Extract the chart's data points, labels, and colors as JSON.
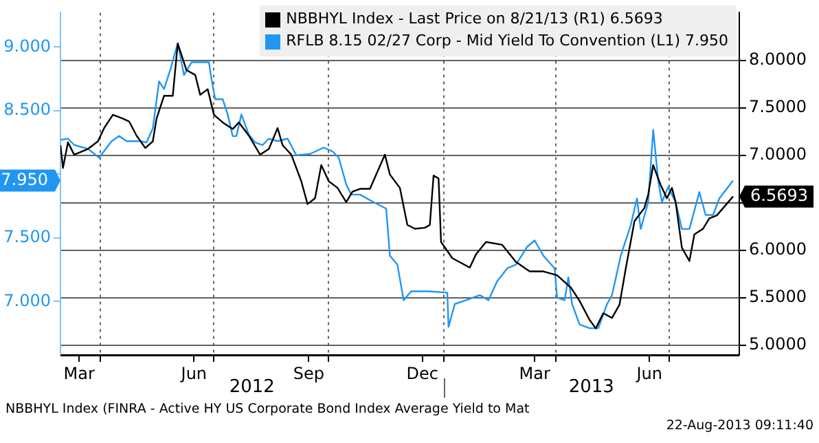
{
  "chart_data": {
    "type": "line",
    "series": [
      {
        "name": "NBBHYL Index - Last Price on 8/21/13 (R1) 6.5693",
        "color": "#000000",
        "axis": "y2",
        "x": [
          "2012-02-29",
          "2012-03-02",
          "2012-03-06",
          "2012-03-11",
          "2012-03-22",
          "2012-03-30",
          "2012-04-04",
          "2012-04-11",
          "2012-04-19",
          "2012-04-24",
          "2012-04-30",
          "2012-05-07",
          "2012-05-13",
          "2012-05-16",
          "2012-05-22",
          "2012-05-29",
          "2012-06-02",
          "2012-06-05",
          "2012-06-09",
          "2012-06-16",
          "2012-06-20",
          "2012-06-26",
          "2012-07-01",
          "2012-07-08",
          "2012-07-16",
          "2012-07-21",
          "2012-07-29",
          "2012-08-07",
          "2012-08-14",
          "2012-08-21",
          "2012-08-25",
          "2012-09-01",
          "2012-09-09",
          "2012-09-14",
          "2012-09-20",
          "2012-09-25",
          "2012-10-01",
          "2012-10-08",
          "2012-10-15",
          "2012-10-20",
          "2012-10-26",
          "2012-11-03",
          "2012-11-10",
          "2012-11-15",
          "2012-11-19",
          "2012-11-27",
          "2012-12-03",
          "2012-12-09",
          "2012-12-17",
          "2012-12-21",
          "2012-12-24",
          "2012-12-28",
          "2012-12-30",
          "2013-01-08",
          "2013-01-22",
          "2013-01-27",
          "2013-02-04",
          "2013-02-17",
          "2013-02-28",
          "2013-03-11",
          "2013-03-22",
          "2013-04-02",
          "2013-04-13",
          "2013-04-20",
          "2013-04-28",
          "2013-05-03",
          "2013-05-09",
          "2013-05-16",
          "2013-05-22",
          "2013-05-27",
          "2013-06-03",
          "2013-06-11",
          "2013-06-14",
          "2013-06-18",
          "2013-06-24",
          "2013-06-29",
          "2013-07-03",
          "2013-07-06",
          "2013-07-11",
          "2013-07-17",
          "2013-07-21",
          "2013-07-28",
          "2013-08-02",
          "2013-08-08",
          "2013-08-21"
        ],
        "values": [
          7.11,
          6.87,
          7.14,
          7.01,
          7.07,
          7.15,
          7.29,
          7.43,
          7.39,
          7.36,
          7.21,
          7.08,
          7.15,
          7.39,
          7.63,
          7.63,
          8.18,
          8.06,
          7.9,
          7.85,
          7.64,
          7.7,
          7.43,
          7.35,
          7.28,
          7.35,
          7.21,
          7.01,
          7.07,
          7.29,
          7.11,
          7.01,
          6.73,
          6.49,
          6.55,
          6.9,
          6.73,
          6.66,
          6.51,
          6.62,
          6.65,
          6.65,
          6.86,
          7.01,
          6.8,
          6.66,
          6.27,
          6.23,
          6.24,
          6.27,
          6.79,
          6.76,
          6.09,
          5.92,
          5.82,
          5.96,
          6.09,
          6.06,
          5.88,
          5.78,
          5.78,
          5.74,
          5.61,
          5.47,
          5.27,
          5.18,
          5.34,
          5.29,
          5.43,
          5.81,
          6.31,
          6.45,
          6.59,
          6.9,
          6.69,
          6.55,
          6.66,
          6.51,
          6.03,
          5.89,
          6.17,
          6.23,
          6.34,
          6.37,
          6.5693
        ],
        "value_labels": [
          null,
          null,
          null,
          null,
          null,
          null,
          null,
          null,
          null,
          null,
          null,
          null,
          null,
          null,
          null,
          null,
          null,
          null,
          null,
          null,
          null,
          null,
          null,
          null,
          null,
          null,
          null,
          null,
          null,
          null,
          null,
          null,
          null,
          null,
          null,
          null,
          null,
          null,
          null,
          null,
          null,
          null,
          null,
          null,
          null,
          null,
          null,
          null,
          null,
          null,
          null,
          null,
          null,
          null,
          null,
          null,
          null,
          null,
          null,
          null,
          null,
          null,
          null,
          null,
          null,
          null,
          null,
          null,
          null,
          null,
          null,
          null,
          null,
          null,
          null,
          null,
          null,
          null,
          null,
          null,
          null,
          null,
          null,
          null,
          "6.5693"
        ]
      },
      {
        "name": "RFLB 8.15 02/27 Corp - Mid Yield To Convention (L1) 7.950",
        "color": "#2196f3",
        "axis": "y",
        "x": [
          "2012-02-29",
          "2012-03-06",
          "2012-03-11",
          "2012-03-22",
          "2012-03-31",
          "2012-04-10",
          "2012-04-16",
          "2012-04-22",
          "2012-05-03",
          "2012-05-08",
          "2012-05-13",
          "2012-05-18",
          "2012-05-22",
          "2012-05-27",
          "2012-06-02",
          "2012-06-07",
          "2012-06-13",
          "2012-06-20",
          "2012-06-27",
          "2012-06-29",
          "2012-07-02",
          "2012-07-08",
          "2012-07-12",
          "2012-07-16",
          "2012-07-19",
          "2012-07-23",
          "2012-07-29",
          "2012-08-03",
          "2012-08-09",
          "2012-08-14",
          "2012-08-21",
          "2012-08-29",
          "2012-09-05",
          "2012-09-16",
          "2012-09-27",
          "2012-10-04",
          "2012-10-09",
          "2012-10-15",
          "2012-10-19",
          "2012-10-26",
          "2012-11-06",
          "2012-11-16",
          "2012-11-19",
          "2012-11-25",
          "2012-11-30",
          "2012-12-06",
          "2012-12-09",
          "2012-12-20",
          "2013-01-04",
          "2013-01-05",
          "2013-01-10",
          "2013-01-19",
          "2013-01-30",
          "2013-02-06",
          "2013-02-13",
          "2013-02-21",
          "2013-02-28",
          "2013-03-09",
          "2013-03-15",
          "2013-03-22",
          "2013-03-31",
          "2013-04-02",
          "2013-04-08",
          "2013-04-11",
          "2013-04-14",
          "2013-04-20",
          "2013-04-28",
          "2013-05-05",
          "2013-05-12",
          "2013-05-16",
          "2013-05-23",
          "2013-05-31",
          "2013-06-05",
          "2013-06-08",
          "2013-06-14",
          "2013-06-18",
          "2013-06-22",
          "2013-06-25",
          "2013-06-30",
          "2013-07-06",
          "2013-07-11",
          "2013-07-17",
          "2013-07-25",
          "2013-07-30",
          "2013-08-05",
          "2013-08-10",
          "2013-08-21"
        ],
        "values": [
          8.27,
          8.28,
          8.23,
          8.2,
          8.13,
          8.26,
          8.3,
          8.26,
          8.26,
          8.25,
          8.36,
          8.73,
          8.67,
          8.82,
          9.03,
          8.78,
          8.88,
          8.88,
          8.88,
          8.75,
          8.59,
          8.59,
          8.47,
          8.3,
          8.3,
          8.47,
          8.31,
          8.25,
          8.23,
          8.28,
          8.26,
          8.28,
          8.15,
          8.16,
          8.21,
          8.18,
          8.13,
          7.92,
          7.84,
          7.84,
          7.78,
          7.73,
          7.36,
          7.29,
          7.01,
          7.08,
          7.08,
          7.08,
          7.07,
          6.8,
          6.98,
          7.01,
          7.05,
          7.01,
          7.16,
          7.26,
          7.29,
          7.43,
          7.48,
          7.36,
          7.26,
          7.03,
          7.01,
          7.19,
          6.98,
          6.82,
          6.79,
          6.79,
          6.98,
          7.05,
          7.36,
          7.6,
          7.81,
          7.57,
          7.78,
          8.35,
          7.95,
          7.78,
          7.9,
          7.78,
          7.57,
          7.57,
          7.86,
          7.68,
          7.68,
          7.81,
          7.95
        ],
        "value_labels": [
          null,
          null,
          null,
          null,
          null,
          null,
          null,
          null,
          null,
          null,
          null,
          null,
          null,
          null,
          null,
          null,
          null,
          null,
          null,
          null,
          null,
          null,
          null,
          null,
          null,
          null,
          null,
          null,
          null,
          null,
          null,
          null,
          null,
          null,
          null,
          null,
          null,
          null,
          null,
          null,
          null,
          null,
          null,
          null,
          null,
          null,
          null,
          null,
          null,
          null,
          null,
          null,
          null,
          null,
          null,
          null,
          null,
          null,
          null,
          null,
          null,
          null,
          null,
          null,
          null,
          null,
          null,
          null,
          null,
          null,
          null,
          null,
          null,
          null,
          null,
          null,
          null,
          null,
          null,
          null,
          null,
          null,
          null,
          null,
          null,
          null,
          null
        ]
      }
    ],
    "xlim": [
      "2012-02-29",
      "2013-08-26"
    ],
    "xticks": [
      {
        "value": "2012-03-15",
        "label": "Mar"
      },
      {
        "value": "2012-04-01",
        "label": null
      },
      {
        "value": "2012-06-15",
        "label": "Jun"
      },
      {
        "value": "2012-07-01",
        "label": null
      },
      {
        "value": "2012-09-15",
        "label": "Sep"
      },
      {
        "value": "2012-10-01",
        "label": null
      },
      {
        "value": "2012-12-15",
        "label": "Dec"
      },
      {
        "value": "2013-01-01",
        "label": null
      },
      {
        "value": "2013-03-15",
        "label": "Mar"
      },
      {
        "value": "2013-04-01",
        "label": null
      },
      {
        "value": "2013-06-15",
        "label": "Jun"
      },
      {
        "value": "2013-07-01",
        "label": null
      }
    ],
    "ylim": [
      6.58,
      9.27
    ],
    "yticks": [
      {
        "value": 7,
        "label": "7.000"
      },
      {
        "value": 7.5,
        "label": "7.500"
      },
      {
        "value": 7.95,
        "label": "7.950"
      },
      {
        "value": 8,
        "label": null
      },
      {
        "value": 8.5,
        "label": "8.500"
      },
      {
        "value": 9,
        "label": "9.000"
      }
    ],
    "y2lim": [
      4.9,
      8.506
    ],
    "y2ticks": [
      {
        "value": 5,
        "label": "5.0000"
      },
      {
        "value": 5.5,
        "label": "5.5000"
      },
      {
        "value": 6,
        "label": "6.0000"
      },
      {
        "value": 6.5,
        "label": null
      },
      {
        "value": 7,
        "label": "7.0000"
      },
      {
        "value": 7.5,
        "label": "7.5000"
      },
      {
        "value": 8,
        "label": "8.0000"
      }
    ],
    "grid": true,
    "legend": "top right",
    "annotations": [
      "2012",
      "2013",
      "NBBHYL Index (FINRA - Active HY US Corporate Bond Index Average Yield to Mat",
      "22-Aug-2013 09:11:40"
    ]
  }
}
